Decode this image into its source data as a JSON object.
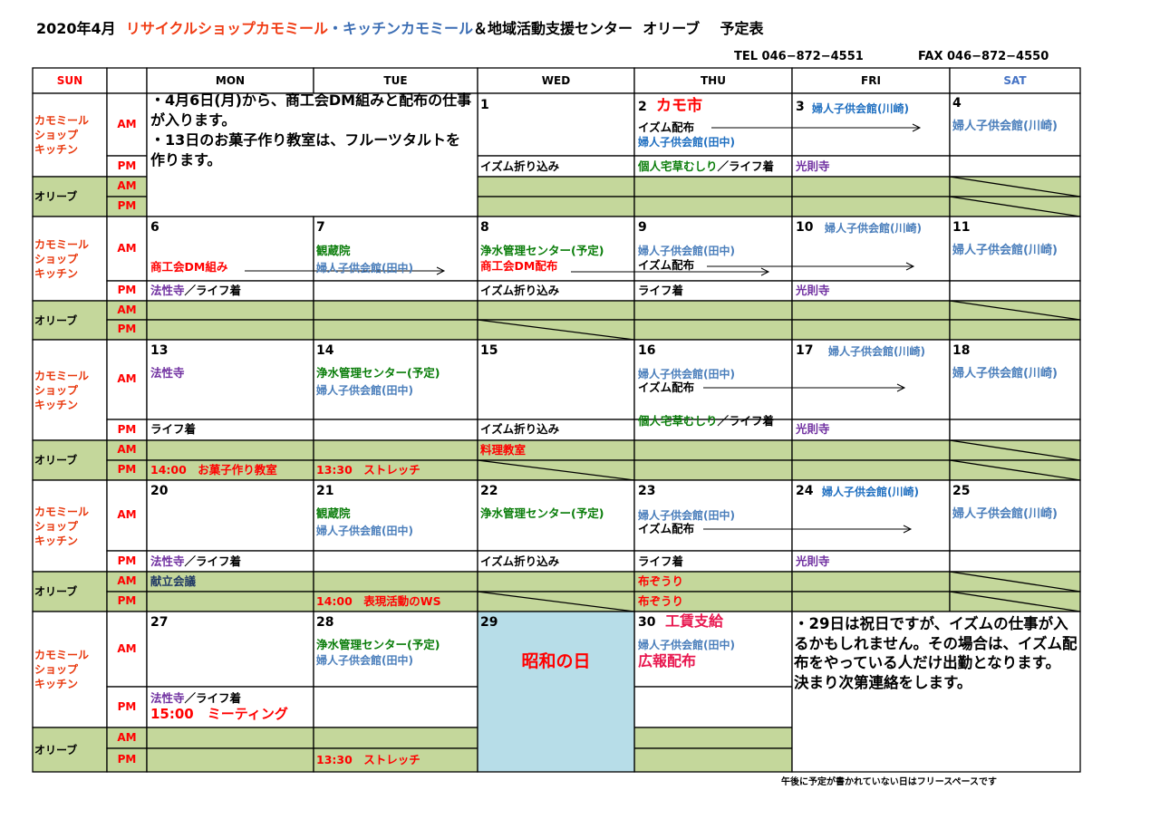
{
  "title": {
    "date": "2020年4月",
    "shop": "リサイクルショップカモミール",
    "kitchen": "・キッチンカモミール",
    "center": "＆地域活動支援センター",
    "olive": "オリーブ",
    "suffix": "予定表"
  },
  "contact": {
    "tel": "TEL 046−872−4551",
    "fax": "FAX 046−872−4550"
  },
  "days": [
    "SUN",
    "MON",
    "TUE",
    "WED",
    "THU",
    "FRI",
    "SAT"
  ],
  "rows": {
    "kamomile": [
      "カモミール",
      "ショップ",
      "キッチン"
    ],
    "olive": "オリーブ",
    "am": "AM",
    "pm": "PM"
  },
  "notes": {
    "top": [
      "・4月6日(月)から、商工会DM組みと配布の仕事が入ります。",
      "・13日のお菓子作り教室は、フルーツタルトを作ります。"
    ],
    "bottom": [
      "・29日は祝日ですが、イズムの仕事が入るかもしれません。その場合は、イズム配布をやっている人だけ出勤となります。",
      "決まり次第連絡をします。"
    ]
  },
  "weeks": [
    {
      "wed": {
        "num": "1",
        "pm": [
          "イズム折り込み"
        ]
      },
      "thu": {
        "num": "2",
        "event": "カモ市",
        "am": [
          "イズム配布",
          "婦人子供会館(田中)"
        ],
        "pm": [
          "個人宅草むしり",
          "／ライフ着"
        ]
      },
      "fri": {
        "num": "3",
        "am": [
          "婦人子供会館(川崎)"
        ],
        "pm": [
          "光則寺"
        ]
      },
      "sat": {
        "num": "4",
        "am": [
          "婦人子供会館(川崎)"
        ]
      }
    },
    {
      "mon": {
        "num": "6",
        "am": [
          "商工会DM組み"
        ],
        "pm": [
          "法性寺",
          "／ライフ着"
        ]
      },
      "tue": {
        "num": "7",
        "am": [
          "観蔵院",
          "婦人子供会館(田中)"
        ]
      },
      "wed": {
        "num": "8",
        "am": [
          "浄水管理センター(予定)",
          "商工会DM配布"
        ],
        "pm": [
          "イズム折り込み"
        ]
      },
      "thu": {
        "num": "9",
        "am": [
          "婦人子供会館(田中)",
          "イズム配布"
        ],
        "pm": [
          "ライフ着"
        ]
      },
      "fri": {
        "num": "10",
        "am": [
          "婦人子供会館(川崎)"
        ],
        "pm": [
          "光則寺"
        ]
      },
      "sat": {
        "num": "11",
        "am": [
          "婦人子供会館(川崎)"
        ]
      }
    },
    {
      "mon": {
        "num": "13",
        "am": [
          "法性寺"
        ],
        "pm": [
          "ライフ着"
        ],
        "olive_pm": "14:00　お菓子作り教室"
      },
      "tue": {
        "num": "14",
        "am": [
          "浄水管理センター(予定)",
          "婦人子供会館(田中)"
        ],
        "olive_pm": "13:30　ストレッチ"
      },
      "wed": {
        "num": "15",
        "pm": [
          "イズム折り込み"
        ],
        "olive_am": "料理教室"
      },
      "thu": {
        "num": "16",
        "am": [
          "婦人子供会館(田中)",
          "イズム配布"
        ],
        "pm": [
          "個人宅草むしり",
          "／ライフ着"
        ]
      },
      "fri": {
        "num": "17",
        "am": [
          "婦人子供会館(川崎)"
        ],
        "pm": [
          "光則寺"
        ]
      },
      "sat": {
        "num": "18",
        "am": [
          "婦人子供会館(川崎)"
        ]
      }
    },
    {
      "mon": {
        "num": "20",
        "pm": [
          "法性寺",
          "／ライフ着"
        ],
        "olive_am": "献立会議"
      },
      "tue": {
        "num": "21",
        "am": [
          "観蔵院",
          "婦人子供会館(田中)"
        ],
        "olive_pm": "14:00　表現活動のWS"
      },
      "wed": {
        "num": "22",
        "am": [
          "浄水管理センター(予定)"
        ],
        "pm": [
          "イズム折り込み"
        ]
      },
      "thu": {
        "num": "23",
        "am": [
          "婦人子供会館(田中)",
          "イズム配布"
        ],
        "pm": [
          "ライフ着"
        ],
        "olive_am": "布ぞうり",
        "olive_pm": "布ぞうり"
      },
      "fri": {
        "num": "24",
        "am": [
          "婦人子供会館(川崎)"
        ],
        "pm": [
          "光則寺"
        ]
      },
      "sat": {
        "num": "25",
        "am": [
          "婦人子供会館(川崎)"
        ]
      }
    },
    {
      "mon": {
        "num": "27",
        "pm": [
          "法性寺",
          "／ライフ着",
          "15:00　ミーティング"
        ]
      },
      "tue": {
        "num": "28",
        "am": [
          "浄水管理センター(予定)",
          "婦人子供会館(田中)"
        ],
        "olive_pm": "13:30　ストレッチ"
      },
      "wed": {
        "num": "29",
        "holiday": "昭和の日"
      },
      "thu": {
        "num": "30",
        "event": "工賃支給",
        "am": [
          "婦人子供会館(田中)",
          "広報配布"
        ]
      }
    }
  ],
  "footer": "午後に予定が書かれていない日はフリースペースです",
  "colors": {
    "olive_fill": "#c4d79b",
    "holiday_fill": "#b7dde8",
    "red": "#ff0000",
    "blue": "#4a7ebb",
    "green": "#0a7d0a",
    "purple": "#7030a0"
  }
}
